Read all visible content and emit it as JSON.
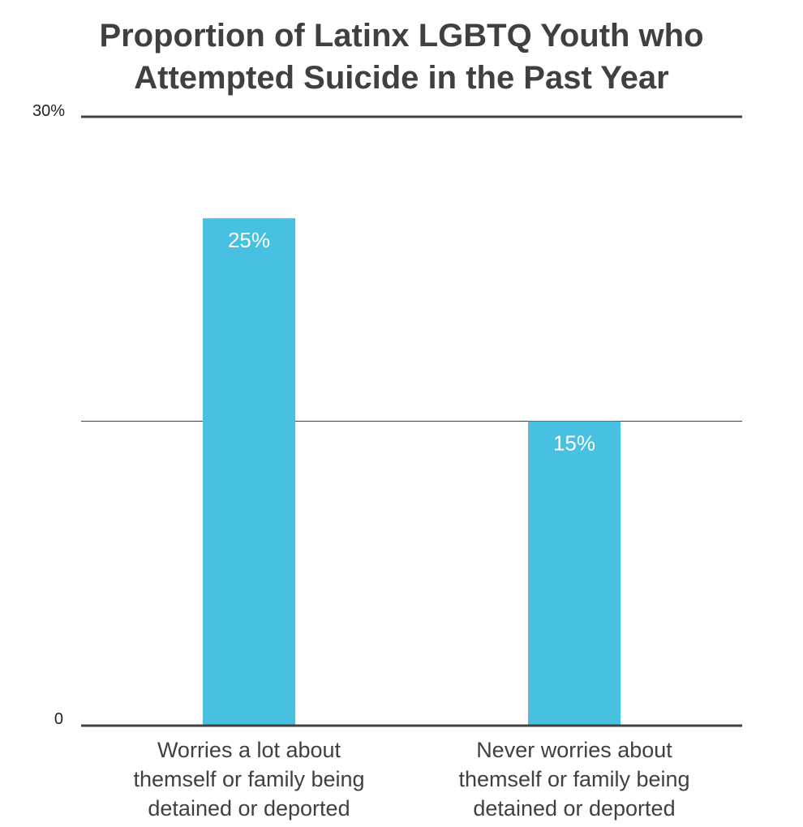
{
  "chart_data": {
    "type": "bar",
    "title_lines": [
      "Proportion of Latinx LGBTQ Youth who",
      "Attempted Suicide in the Past Year"
    ],
    "categories": [
      [
        "Worries a lot about",
        "themself or family being",
        "detained or deported"
      ],
      [
        "Never worries about",
        "themself or family being",
        "detained or deported"
      ]
    ],
    "values": [
      25,
      15
    ],
    "data_labels": [
      "25%",
      "15%"
    ],
    "y_tick_labels": [
      {
        "value": 30,
        "label": "30%"
      },
      {
        "value": 0,
        "label": "0"
      }
    ],
    "gridlines": [
      0,
      15,
      30
    ],
    "ylim": [
      0,
      30
    ],
    "xlabel": "",
    "ylabel": "",
    "bar_color": "#48C0E2",
    "axis_color": "#404040",
    "grid": true
  }
}
